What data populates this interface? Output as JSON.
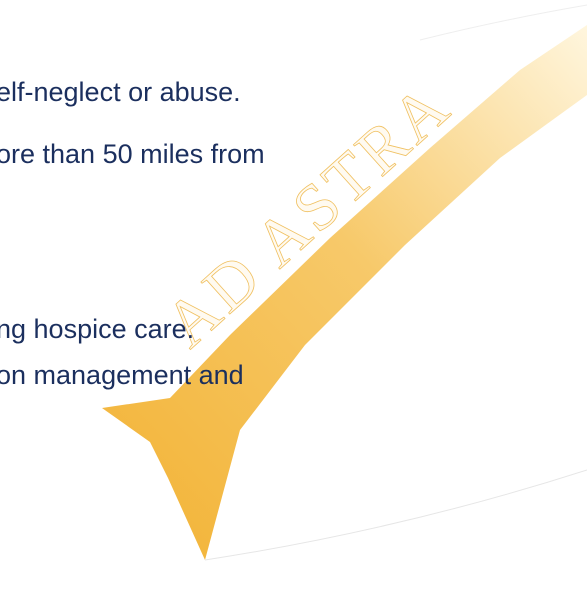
{
  "text_lines": [
    "elf-neglect or abuse.",
    "ore than 50 miles from",
    "ng hospice care.",
    "on management and"
  ],
  "ribbon": {
    "text": "AD ASTRA"
  }
}
